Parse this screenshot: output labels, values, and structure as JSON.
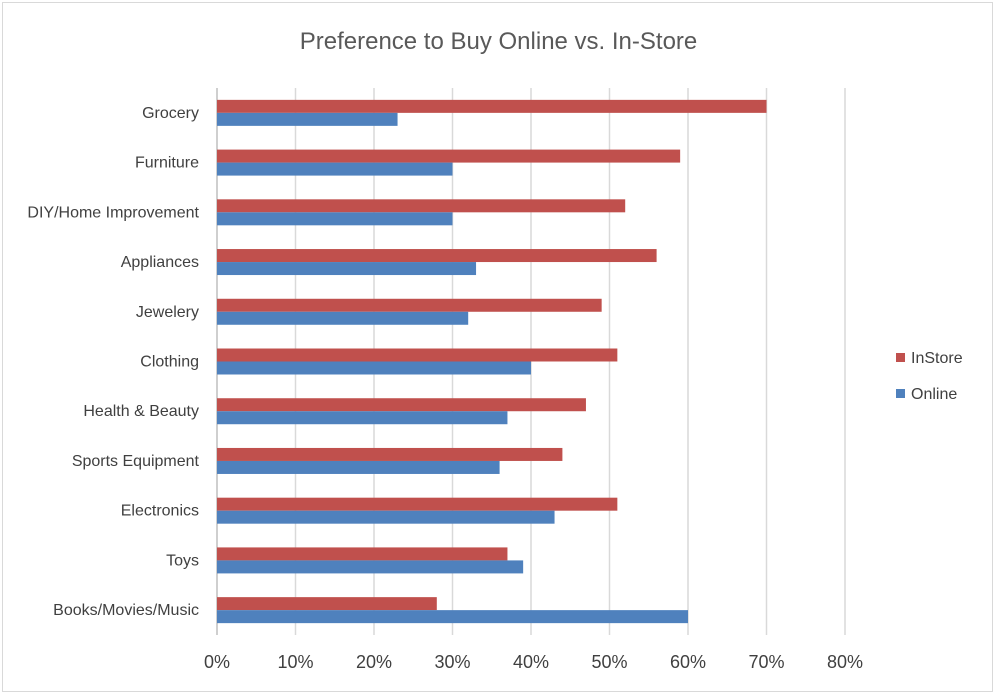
{
  "chart_data": {
    "type": "bar",
    "orientation": "horizontal",
    "title": "Preference to Buy Online vs. In-Store",
    "categories": [
      "Grocery",
      "Furniture",
      "DIY/Home Improvement",
      "Appliances",
      "Jewelery",
      "Clothing",
      "Health & Beauty",
      "Sports Equipment",
      "Electronics",
      "Toys",
      "Books/Movies/Music"
    ],
    "series": [
      {
        "name": "InStore",
        "color": "#c0504d",
        "values": [
          70,
          59,
          52,
          56,
          49,
          51,
          47,
          44,
          51,
          37,
          28
        ]
      },
      {
        "name": "Online",
        "color": "#4f81bd",
        "values": [
          23,
          30,
          30,
          33,
          32,
          40,
          37,
          36,
          43,
          39,
          60
        ]
      }
    ],
    "xlim": [
      0,
      80
    ],
    "xticks": [
      0,
      10,
      20,
      30,
      40,
      50,
      60,
      70,
      80
    ],
    "tick_format": "percent",
    "grid": "vertical",
    "legend_position": "right"
  }
}
